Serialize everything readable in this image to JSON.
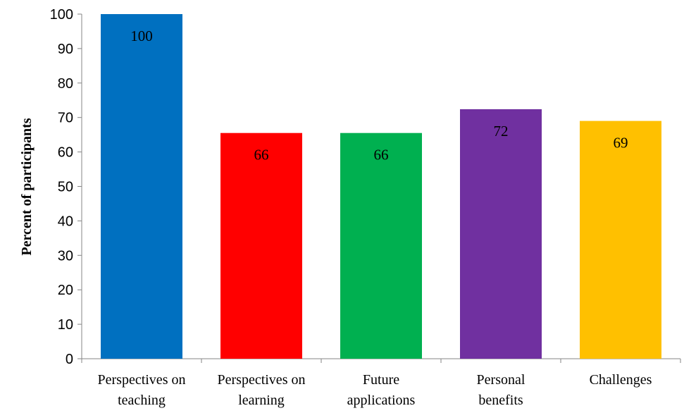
{
  "chart_data": {
    "type": "bar",
    "categories": [
      [
        "Perspectives on",
        "teaching"
      ],
      [
        "Perspectives on",
        "learning"
      ],
      [
        "Future",
        "applications"
      ],
      [
        "Personal",
        "benefits"
      ],
      [
        "Challenges"
      ]
    ],
    "values": [
      100,
      65.5,
      65.5,
      72.4,
      69
    ],
    "data_labels": [
      "100",
      "66",
      "66",
      "72",
      "69"
    ],
    "colors": [
      "#0070C0",
      "#FF0000",
      "#00B050",
      "#7030A0",
      "#FFC000"
    ],
    "ylabel": "Percent of participants",
    "ylim": [
      0,
      100
    ],
    "yticks": [
      "0",
      "10",
      "20",
      "30",
      "40",
      "50",
      "60",
      "70",
      "80",
      "90",
      "100"
    ],
    "grid": false,
    "legend": "none"
  }
}
